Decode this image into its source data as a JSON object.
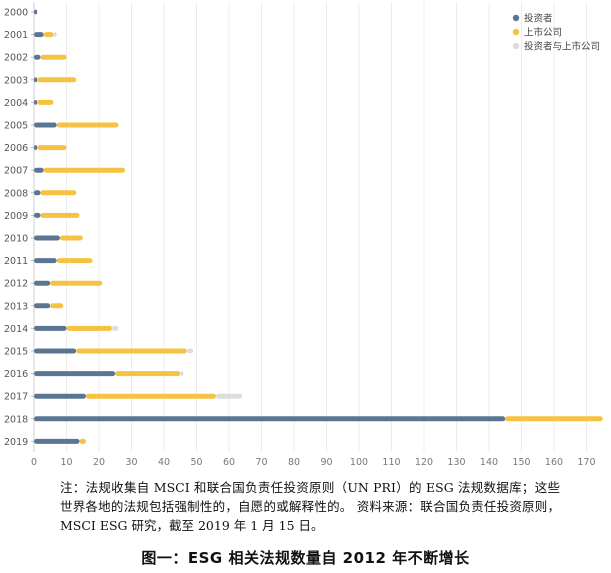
{
  "chart_data": {
    "type": "bar",
    "orientation": "horizontal",
    "stacked": true,
    "categories": [
      "2000",
      "2001",
      "2002",
      "2003",
      "2004",
      "2005",
      "2006",
      "2007",
      "2008",
      "2009",
      "2010",
      "2011",
      "2012",
      "2013",
      "2014",
      "2015",
      "2016",
      "2017",
      "2018",
      "2019"
    ],
    "series": [
      {
        "name": "投资者",
        "color": "#5b7693",
        "values": [
          1,
          3,
          2,
          1,
          1,
          7,
          1,
          3,
          2,
          2,
          8,
          7,
          5,
          5,
          10,
          13,
          25,
          16,
          145,
          14
        ]
      },
      {
        "name": "上市公司",
        "color": "#f5c242",
        "values": [
          0,
          3,
          8,
          12,
          5,
          19,
          9,
          25,
          11,
          12,
          7,
          11,
          16,
          4,
          14,
          34,
          20,
          40,
          30,
          2
        ]
      },
      {
        "name": "投资者与上市公司",
        "color": "#dddddd",
        "values": [
          0,
          1,
          0,
          0,
          0,
          0,
          0,
          0,
          0,
          0,
          0,
          0,
          0,
          0,
          2,
          2,
          1,
          8,
          0,
          0
        ]
      }
    ],
    "x_ticks": [
      0,
      10,
      20,
      30,
      40,
      50,
      60,
      70,
      80,
      90,
      100,
      110,
      120,
      130,
      140,
      150,
      160,
      170
    ],
    "xlim": [
      0,
      175
    ],
    "grid": true,
    "legend_position": "top-right"
  },
  "note": "注：法规收集自 MSCI 和联合国负责任投资原则（UN PRI）的 ESG 法规数据库；这些世界各地的法规包括强制性的，自愿的或解释性的。 资料来源：联合国负责任投资原则，MSCI ESG 研究，截至 2019 年 1 月 15 日。",
  "caption": "图一：ESG 相关法规数量自 2012 年不断增长"
}
